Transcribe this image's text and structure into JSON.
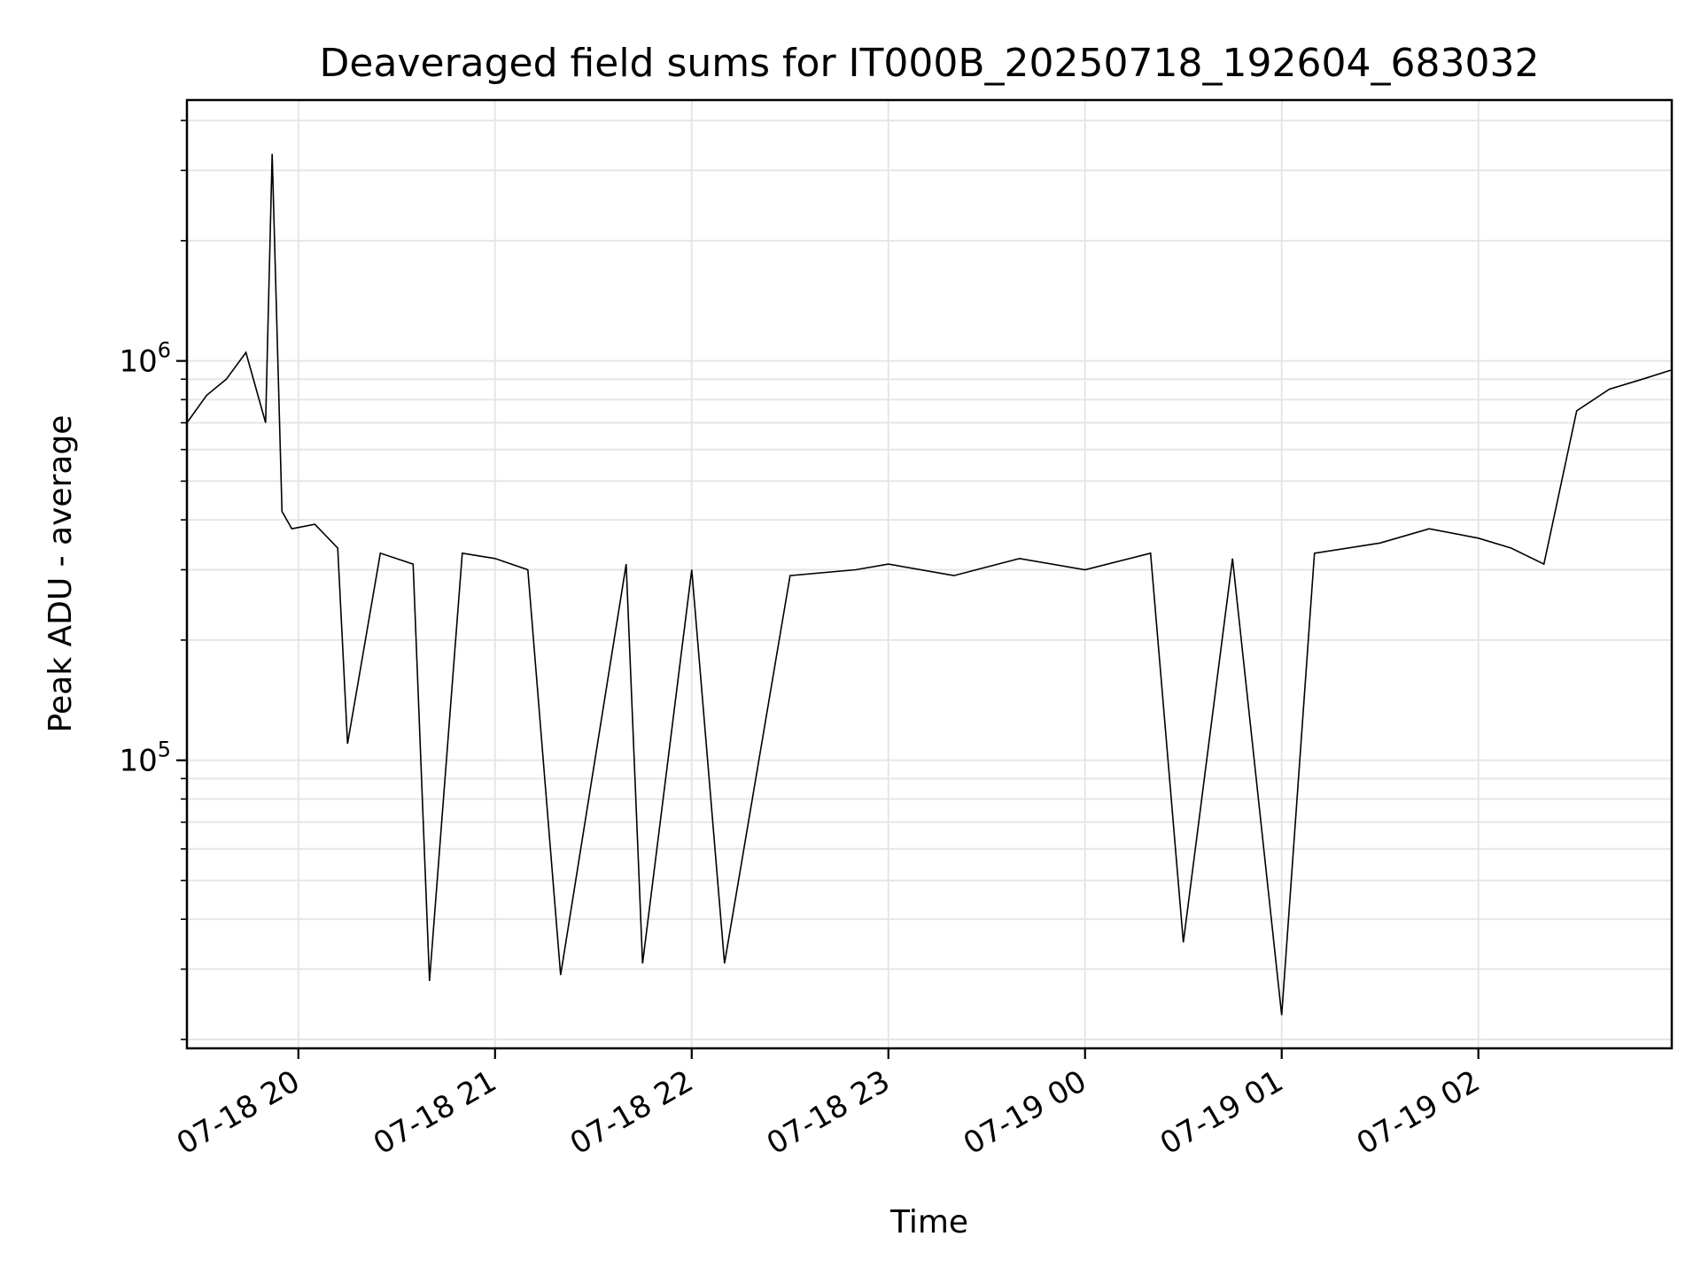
{
  "chart_data": {
    "type": "line",
    "title": "Deaveraged field sums for IT000B_20250718_192604_683032",
    "xlabel": "Time",
    "ylabel": "Peak ADU - average",
    "x_range": [
      "2025-07-18 19:26",
      "2025-07-19 02:59"
    ],
    "x_ticks": [
      {
        "time": "2025-07-18 20:00",
        "label": "07-18 20"
      },
      {
        "time": "2025-07-18 21:00",
        "label": "07-18 21"
      },
      {
        "time": "2025-07-18 22:00",
        "label": "07-18 22"
      },
      {
        "time": "2025-07-18 23:00",
        "label": "07-18 23"
      },
      {
        "time": "2025-07-19 00:00",
        "label": "07-19 00"
      },
      {
        "time": "2025-07-19 01:00",
        "label": "07-19 01"
      },
      {
        "time": "2025-07-19 02:00",
        "label": "07-19 02"
      }
    ],
    "yscale": "log",
    "ylim": [
      19000,
      4500000
    ],
    "y_ticks": [
      {
        "value": 100000,
        "base": "10",
        "exp": "5"
      },
      {
        "value": 1000000,
        "base": "10",
        "exp": "6"
      }
    ],
    "grid": true,
    "line_color": "#000000",
    "series": [
      {
        "points": [
          [
            "2025-07-18 19:26",
            700000
          ],
          [
            "2025-07-18 19:32",
            820000
          ],
          [
            "2025-07-18 19:38",
            900000
          ],
          [
            "2025-07-18 19:44",
            1050000
          ],
          [
            "2025-07-18 19:50",
            700000
          ],
          [
            "2025-07-18 19:52",
            3300000
          ],
          [
            "2025-07-18 19:55",
            420000
          ],
          [
            "2025-07-18 19:58",
            380000
          ],
          [
            "2025-07-18 20:05",
            390000
          ],
          [
            "2025-07-18 20:12",
            340000
          ],
          [
            "2025-07-18 20:15",
            110000
          ],
          [
            "2025-07-18 20:25",
            330000
          ],
          [
            "2025-07-18 20:35",
            310000
          ],
          [
            "2025-07-18 20:40",
            28000
          ],
          [
            "2025-07-18 20:50",
            330000
          ],
          [
            "2025-07-18 21:00",
            320000
          ],
          [
            "2025-07-18 21:10",
            300000
          ],
          [
            "2025-07-18 21:20",
            29000
          ],
          [
            "2025-07-18 21:40",
            310000
          ],
          [
            "2025-07-18 21:45",
            31000
          ],
          [
            "2025-07-18 22:00",
            300000
          ],
          [
            "2025-07-18 22:10",
            31000
          ],
          [
            "2025-07-18 22:30",
            290000
          ],
          [
            "2025-07-18 22:50",
            300000
          ],
          [
            "2025-07-18 23:00",
            310000
          ],
          [
            "2025-07-18 23:20",
            290000
          ],
          [
            "2025-07-18 23:40",
            320000
          ],
          [
            "2025-07-19 00:00",
            300000
          ],
          [
            "2025-07-19 00:20",
            330000
          ],
          [
            "2025-07-19 00:30",
            35000
          ],
          [
            "2025-07-19 00:45",
            320000
          ],
          [
            "2025-07-19 01:00",
            23000
          ],
          [
            "2025-07-19 01:10",
            330000
          ],
          [
            "2025-07-19 01:30",
            350000
          ],
          [
            "2025-07-19 01:45",
            380000
          ],
          [
            "2025-07-19 02:00",
            360000
          ],
          [
            "2025-07-19 02:10",
            340000
          ],
          [
            "2025-07-19 02:20",
            310000
          ],
          [
            "2025-07-19 02:30",
            750000
          ],
          [
            "2025-07-19 02:40",
            850000
          ],
          [
            "2025-07-19 02:50",
            900000
          ],
          [
            "2025-07-19 02:59",
            950000
          ]
        ]
      }
    ]
  }
}
